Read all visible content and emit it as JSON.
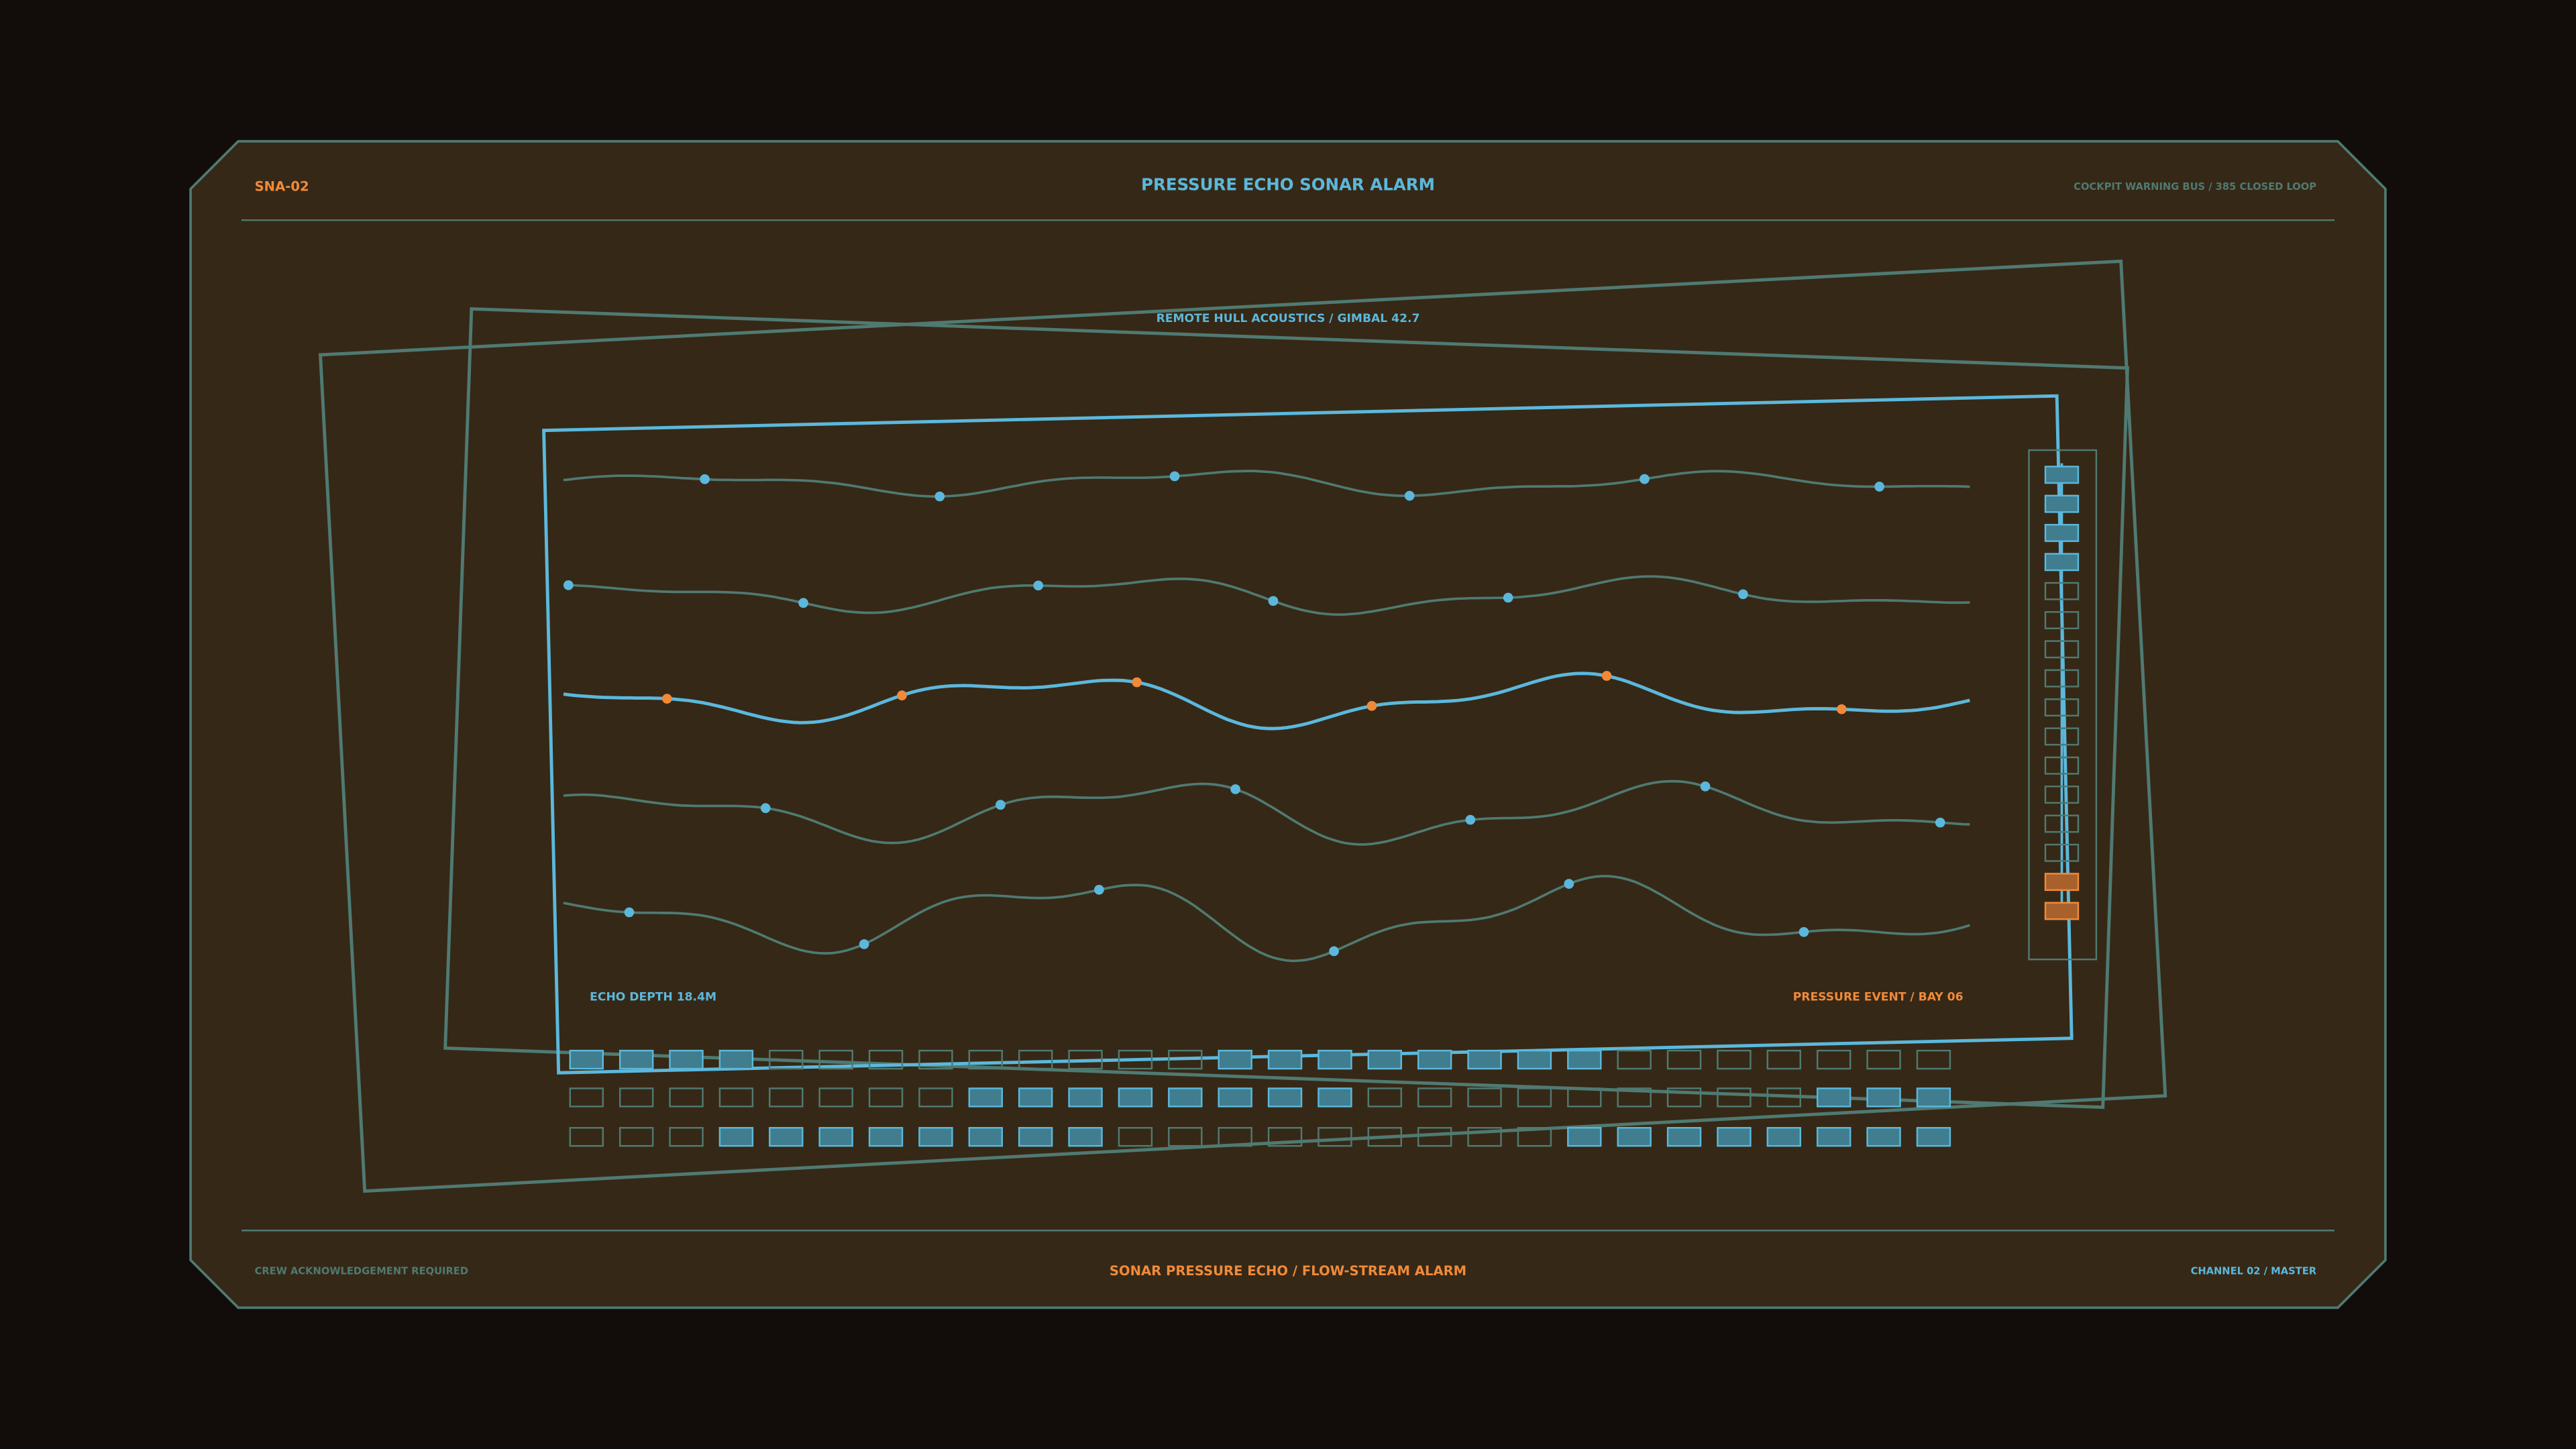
{
  "header": {
    "id": "SNA-02",
    "title": "PRESSURE ECHO SONAR ALARM",
    "bus": "COCKPIT WARNING BUS / 385 CLOSED LOOP"
  },
  "panel": {
    "caption": "REMOTE HULL ACOUSTICS / GIMBAL 42.7",
    "left_label": "ECHO DEPTH 18.4M",
    "right_label": "PRESSURE EVENT / BAY 06"
  },
  "footer": {
    "left": "CREW ACKNOWLEDGEMENT REQUIRED",
    "center": "SONAR PRESSURE ECHO / FLOW-STREAM ALARM",
    "right": "CHANNEL 02 / MASTER"
  }
}
